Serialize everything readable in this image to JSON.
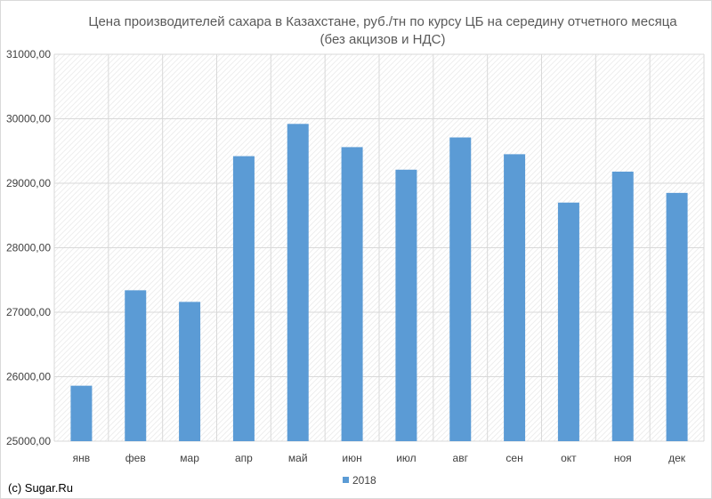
{
  "chart_data": {
    "type": "bar",
    "title": "Цена производителей  сахара в Казахстане, руб./тн  по курсу ЦБ на середину отчетного месяца",
    "subtitle": "(без акцизов и НДС)",
    "categories": [
      "янв",
      "фев",
      "мар",
      "апр",
      "май",
      "июн",
      "июл",
      "авг",
      "сен",
      "окт",
      "ноя",
      "дек"
    ],
    "series": [
      {
        "name": "2018",
        "values": [
          25860,
          27340,
          27160,
          29420,
          29920,
          29560,
          29210,
          29710,
          29450,
          28700,
          29180,
          28850
        ]
      }
    ],
    "ylim": [
      25000,
      31000
    ],
    "yticks": [
      "25000,00",
      "26000,00",
      "27000,00",
      "28000,00",
      "29000,00",
      "30000,00",
      "31000,00"
    ],
    "grid": true,
    "legend_position": "bottom",
    "bar_color": "#5b9bd5"
  },
  "footer": {
    "copyright": "(c) Sugar.Ru"
  }
}
